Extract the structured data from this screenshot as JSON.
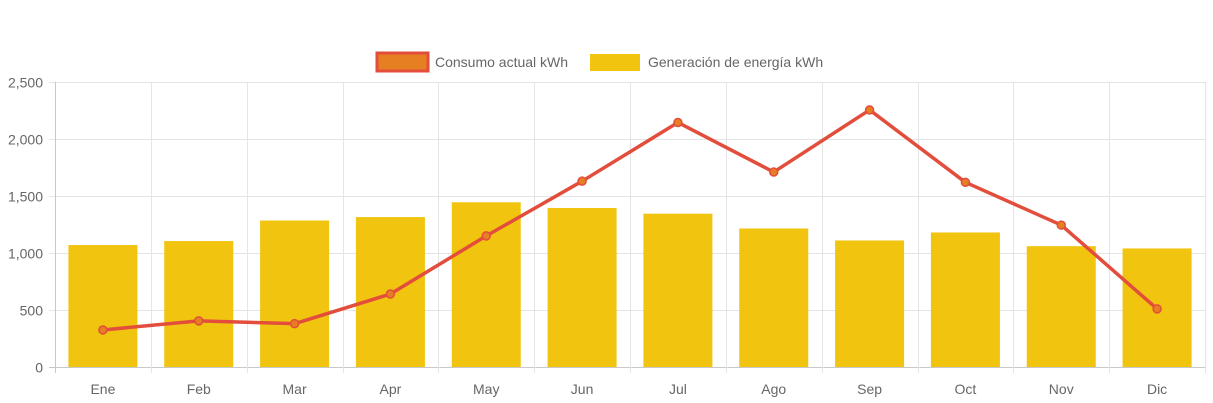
{
  "chart_data": {
    "type": "bar",
    "categories": [
      "Ene",
      "Feb",
      "Mar",
      "Apr",
      "May",
      "Jun",
      "Jul",
      "Ago",
      "Sep",
      "Oct",
      "Nov",
      "Dic"
    ],
    "series": [
      {
        "name": "Consumo actual kWh",
        "type": "line",
        "color": "#e24e3b",
        "point_color": "#e67e22",
        "values": [
          325,
          405,
          380,
          640,
          1150,
          1630,
          2145,
          1710,
          2255,
          1620,
          1245,
          510
        ]
      },
      {
        "name": "Generación de energía kWh",
        "type": "bar",
        "color": "#f1c40f",
        "values": [
          1070,
          1105,
          1285,
          1315,
          1445,
          1395,
          1345,
          1215,
          1110,
          1180,
          1060,
          1040
        ]
      }
    ],
    "y_ticks": [
      "0",
      "500",
      "1,000",
      "1,500",
      "2,000",
      "2,500"
    ],
    "ylim": [
      0,
      2500
    ],
    "grid": true,
    "legend_position": "top"
  }
}
